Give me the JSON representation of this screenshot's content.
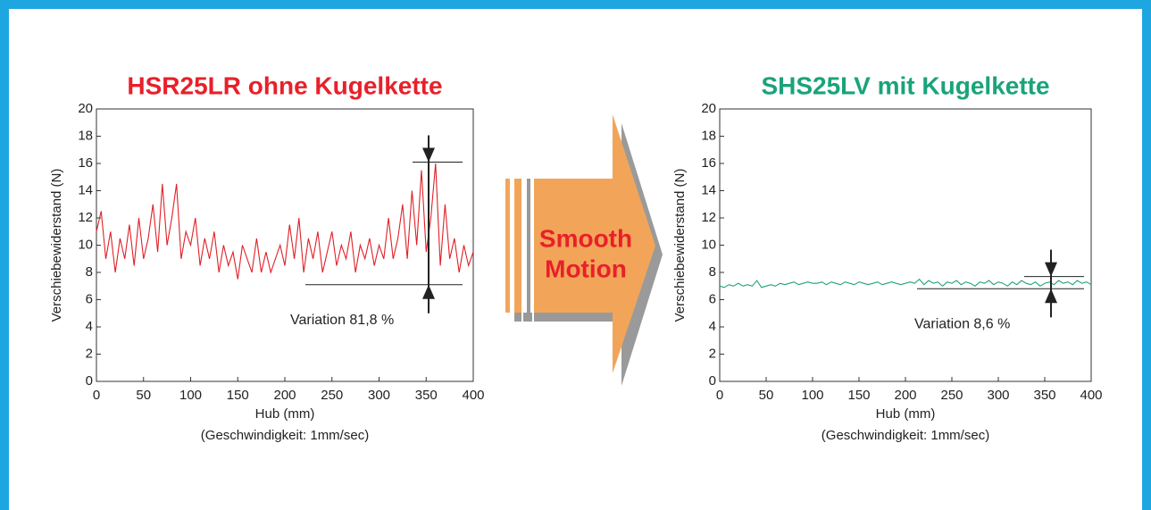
{
  "chart_data": [
    {
      "type": "line",
      "title": "HSR25LR ohne Kugelkette",
      "title_color": "#e8202a",
      "xlabel": "Hub (mm)",
      "ylabel": "Verschiebewiderstand (N)",
      "note": "(Geschwindigkeit: 1mm/sec)",
      "annotation": "Variation 81,8 %",
      "variation_limits": [
        7.1,
        16.1
      ],
      "xlim": [
        0,
        400
      ],
      "ylim": [
        0,
        20
      ],
      "xticks": [
        0,
        50,
        100,
        150,
        200,
        250,
        300,
        350,
        400
      ],
      "yticks": [
        0,
        2,
        4,
        6,
        8,
        10,
        12,
        14,
        16,
        18,
        20
      ],
      "x": [
        0,
        5,
        10,
        15,
        20,
        25,
        30,
        35,
        40,
        45,
        50,
        55,
        60,
        65,
        70,
        75,
        80,
        85,
        90,
        95,
        100,
        105,
        110,
        115,
        120,
        125,
        130,
        135,
        140,
        145,
        150,
        155,
        160,
        165,
        170,
        175,
        180,
        185,
        190,
        195,
        200,
        205,
        210,
        215,
        220,
        225,
        230,
        235,
        240,
        245,
        250,
        255,
        260,
        265,
        270,
        275,
        280,
        285,
        290,
        295,
        300,
        305,
        310,
        315,
        320,
        325,
        330,
        335,
        340,
        345,
        350,
        355,
        360,
        365,
        370,
        375,
        380,
        385,
        390,
        395,
        400
      ],
      "values": [
        11,
        12.5,
        9,
        11,
        8,
        10.5,
        9,
        11.5,
        8.5,
        12,
        9,
        10.5,
        13,
        9.5,
        14.5,
        10,
        12,
        14.5,
        9,
        11,
        10,
        12,
        8.5,
        10.5,
        9,
        11,
        8,
        10,
        8.5,
        9.5,
        7.5,
        10,
        9,
        8,
        10.5,
        8,
        9.5,
        8,
        9,
        10,
        8.5,
        11.5,
        9,
        12,
        8,
        10.5,
        9,
        11,
        8,
        9.5,
        11,
        8.5,
        10,
        9,
        11,
        8,
        10,
        9,
        10.5,
        8.5,
        10,
        9,
        12,
        9,
        10.5,
        13,
        9,
        14,
        10,
        15.5,
        9.5,
        12,
        16,
        8.5,
        13,
        9,
        10.5,
        8,
        10,
        8.5,
        9.5
      ],
      "color": "#e02027"
    },
    {
      "type": "line",
      "title": "SHS25LV mit Kugelkette",
      "title_color": "#1aa37a",
      "xlabel": "Hub (mm)",
      "ylabel": "Verschiebewiderstand (N)",
      "note": "(Geschwindigkeit: 1mm/sec)",
      "annotation": "Variation 8,6 %",
      "variation_limits": [
        6.8,
        7.7
      ],
      "xlim": [
        0,
        400
      ],
      "ylim": [
        0,
        20
      ],
      "xticks": [
        0,
        50,
        100,
        150,
        200,
        250,
        300,
        350,
        400
      ],
      "yticks": [
        0,
        2,
        4,
        6,
        8,
        10,
        12,
        14,
        16,
        18,
        20
      ],
      "x": [
        0,
        5,
        10,
        15,
        20,
        25,
        30,
        35,
        40,
        45,
        50,
        55,
        60,
        65,
        70,
        75,
        80,
        85,
        90,
        95,
        100,
        105,
        110,
        115,
        120,
        125,
        130,
        135,
        140,
        145,
        150,
        155,
        160,
        165,
        170,
        175,
        180,
        185,
        190,
        195,
        200,
        205,
        210,
        215,
        220,
        225,
        230,
        235,
        240,
        245,
        250,
        255,
        260,
        265,
        270,
        275,
        280,
        285,
        290,
        295,
        300,
        305,
        310,
        315,
        320,
        325,
        330,
        335,
        340,
        345,
        350,
        355,
        360,
        365,
        370,
        375,
        380,
        385,
        390,
        395,
        400
      ],
      "values": [
        7,
        6.9,
        7.1,
        7,
        7.2,
        7,
        7.1,
        7,
        7.4,
        6.9,
        7,
        7.1,
        7,
        7.2,
        7.1,
        7.2,
        7.3,
        7.1,
        7.2,
        7.3,
        7.2,
        7.2,
        7.3,
        7.1,
        7.3,
        7.2,
        7.1,
        7.3,
        7.2,
        7.1,
        7.3,
        7.2,
        7.1,
        7.2,
        7.3,
        7.1,
        7.2,
        7.3,
        7.2,
        7.1,
        7.2,
        7.3,
        7.2,
        7.5,
        7.1,
        7.4,
        7.2,
        7.3,
        7,
        7.3,
        7.2,
        7.4,
        7.1,
        7.3,
        7.2,
        7,
        7.3,
        7.2,
        7.4,
        7.1,
        7.3,
        7.2,
        7,
        7.3,
        7.1,
        7.4,
        7.2,
        7.1,
        7.3,
        7,
        7.2,
        7.3,
        7.1,
        7.4,
        7.2,
        7.3,
        7.1,
        7.4,
        7.2,
        7.3,
        7.1
      ],
      "color": "#1fa27c"
    }
  ],
  "center_label": [
    "Smooth",
    "Motion"
  ]
}
